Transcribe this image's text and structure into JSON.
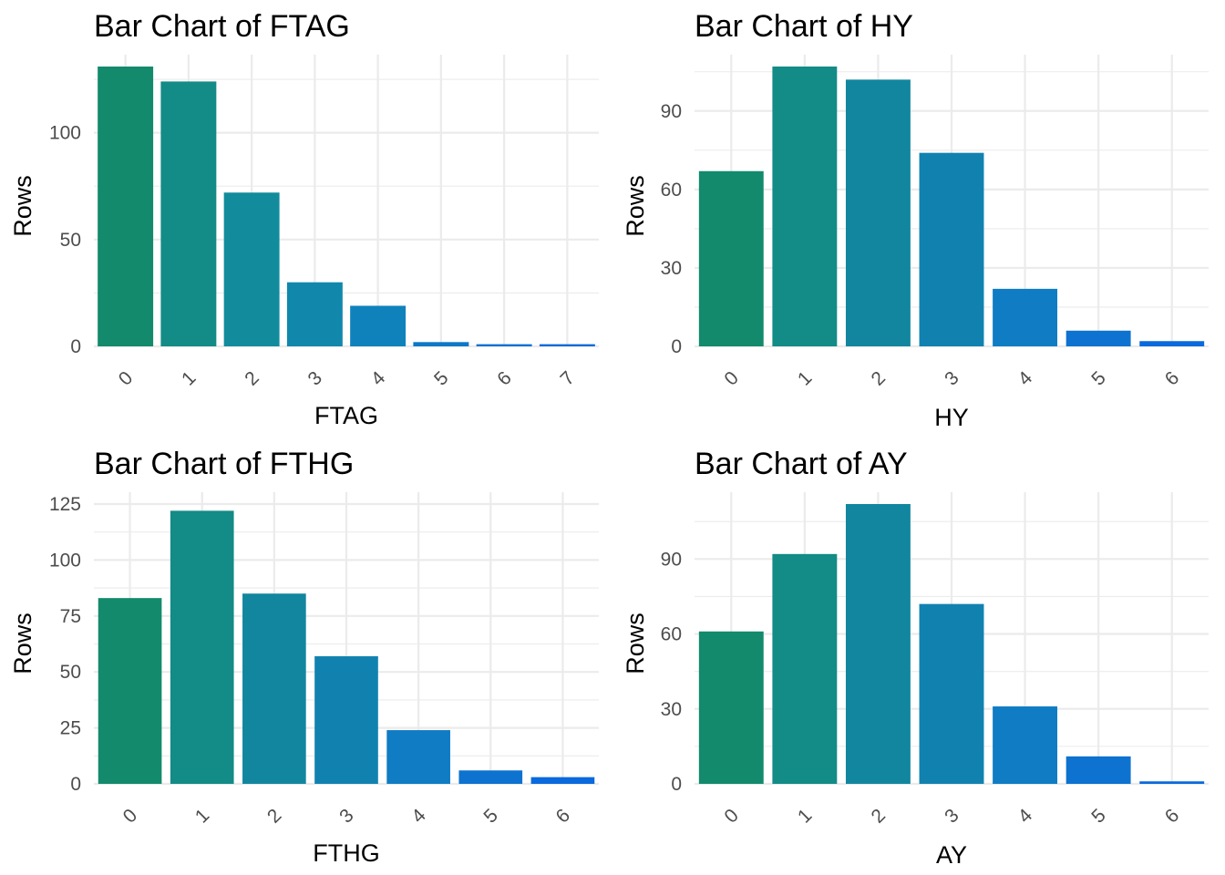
{
  "chart_data": [
    {
      "type": "bar",
      "title": "Bar Chart of FTAG",
      "xlabel": "FTAG",
      "ylabel": "Rows",
      "categories": [
        "0",
        "1",
        "2",
        "3",
        "4",
        "5",
        "6",
        "7"
      ],
      "values": [
        131,
        124,
        72,
        30,
        19,
        2,
        1,
        1
      ],
      "yticks": [
        0,
        50,
        100
      ],
      "ylim": [
        0,
        131
      ],
      "grid": true,
      "legend": "none",
      "colors": [
        "#138a6c",
        "#138b86",
        "#128c9c",
        "#1187ac",
        "#0f82bc",
        "#0d78c8",
        "#0b70d2",
        "#0a69dc"
      ]
    },
    {
      "type": "bar",
      "title": "Bar Chart of HY",
      "xlabel": "HY",
      "ylabel": "Rows",
      "categories": [
        "0",
        "1",
        "2",
        "3",
        "4",
        "5",
        "6"
      ],
      "values": [
        67,
        107,
        102,
        74,
        22,
        6,
        2
      ],
      "yticks": [
        0,
        30,
        60,
        90
      ],
      "ylim": [
        0,
        107
      ],
      "grid": true,
      "legend": "none",
      "colors": [
        "#138a6c",
        "#138b86",
        "#12869f",
        "#1182b0",
        "#0f7cc4",
        "#0d72d0",
        "#0a69dc"
      ]
    },
    {
      "type": "bar",
      "title": "Bar Chart of FTHG",
      "xlabel": "FTHG",
      "ylabel": "Rows",
      "categories": [
        "0",
        "1",
        "2",
        "3",
        "4",
        "5",
        "6"
      ],
      "values": [
        83,
        122,
        85,
        57,
        24,
        6,
        3
      ],
      "yticks": [
        0,
        25,
        50,
        75,
        100,
        125
      ],
      "ylim": [
        0,
        125
      ],
      "grid": true,
      "legend": "none",
      "colors": [
        "#138a6c",
        "#138b86",
        "#12869f",
        "#1182b0",
        "#0f7cc4",
        "#0d72d0",
        "#0a69dc"
      ]
    },
    {
      "type": "bar",
      "title": "Bar Chart of AY",
      "xlabel": "AY",
      "ylabel": "Rows",
      "categories": [
        "0",
        "1",
        "2",
        "3",
        "4",
        "5",
        "6"
      ],
      "values": [
        61,
        92,
        112,
        72,
        31,
        11,
        1
      ],
      "yticks": [
        0,
        30,
        60,
        90
      ],
      "ylim": [
        0,
        112
      ],
      "grid": true,
      "legend": "none",
      "colors": [
        "#138a6c",
        "#138b86",
        "#12869f",
        "#1182b0",
        "#0f7cc4",
        "#0d72d0",
        "#0a69dc"
      ]
    }
  ]
}
